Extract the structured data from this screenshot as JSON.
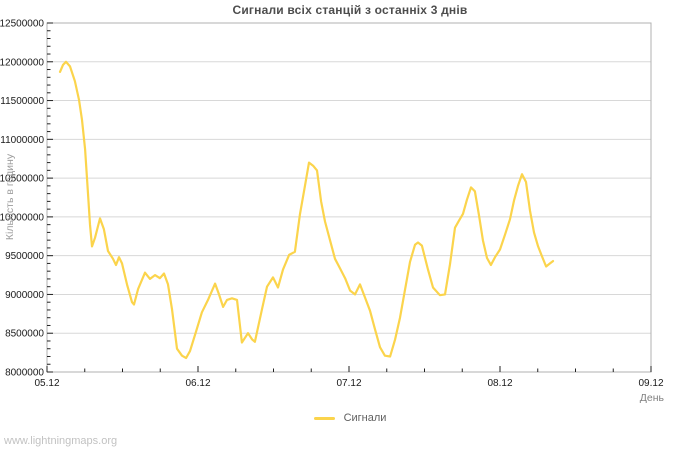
{
  "window": {
    "watermark": "www.lightningmaps.org"
  },
  "colors": {
    "background": "#ffffff",
    "line": "#fbd44c",
    "grid": "#d8d8d8",
    "plot_border": "#b0b0b0",
    "tick": "#222222",
    "tick_label": "#1a1a1a",
    "title": "#4d4d4d",
    "axis_title": "#808080",
    "y_axis_title": "#9c9c9c",
    "legend_text": "#606060",
    "watermark": "#c2c2c2"
  },
  "chart_data": {
    "type": "line",
    "title": "Сигнали всіх станцій з останніх 3 днів",
    "xlabel": "День",
    "ylabel": "Кількість в годину",
    "grid": "horizontal-only",
    "legend_position": "bottom-center",
    "x_tick_labels": [
      "05.12",
      "06.12",
      "07.12",
      "08.12",
      "09.12"
    ],
    "x_tick_days": [
      0,
      1,
      2,
      3,
      4
    ],
    "x_range_days": [
      0,
      4
    ],
    "x_minor_step_days": 0.25,
    "ylim": [
      8000000,
      12500000
    ],
    "y_ticks": [
      8000000,
      8500000,
      9000000,
      9500000,
      10000000,
      10500000,
      11000000,
      11500000,
      12000000,
      12500000
    ],
    "y_minor_step": 100000,
    "series": [
      {
        "name": "Сигнали",
        "color": "#fbd44c",
        "points": [
          [
            0.086,
            11870000
          ],
          [
            0.106,
            11960000
          ],
          [
            0.126,
            12000000
          ],
          [
            0.152,
            11940000
          ],
          [
            0.185,
            11750000
          ],
          [
            0.212,
            11510000
          ],
          [
            0.232,
            11250000
          ],
          [
            0.252,
            10870000
          ],
          [
            0.272,
            10280000
          ],
          [
            0.285,
            9900000
          ],
          [
            0.298,
            9620000
          ],
          [
            0.318,
            9730000
          ],
          [
            0.351,
            9980000
          ],
          [
            0.377,
            9840000
          ],
          [
            0.404,
            9560000
          ],
          [
            0.437,
            9460000
          ],
          [
            0.457,
            9380000
          ],
          [
            0.477,
            9480000
          ],
          [
            0.497,
            9400000
          ],
          [
            0.53,
            9130000
          ],
          [
            0.563,
            8900000
          ],
          [
            0.576,
            8870000
          ],
          [
            0.603,
            9070000
          ],
          [
            0.649,
            9280000
          ],
          [
            0.682,
            9200000
          ],
          [
            0.715,
            9250000
          ],
          [
            0.748,
            9210000
          ],
          [
            0.775,
            9270000
          ],
          [
            0.801,
            9130000
          ],
          [
            0.828,
            8810000
          ],
          [
            0.861,
            8300000
          ],
          [
            0.894,
            8210000
          ],
          [
            0.921,
            8180000
          ],
          [
            0.947,
            8270000
          ],
          [
            0.987,
            8520000
          ],
          [
            1.026,
            8770000
          ],
          [
            1.066,
            8930000
          ],
          [
            1.113,
            9140000
          ],
          [
            1.139,
            9000000
          ],
          [
            1.166,
            8840000
          ],
          [
            1.192,
            8930000
          ],
          [
            1.225,
            8950000
          ],
          [
            1.258,
            8930000
          ],
          [
            1.291,
            8380000
          ],
          [
            1.331,
            8500000
          ],
          [
            1.358,
            8420000
          ],
          [
            1.377,
            8390000
          ],
          [
            1.424,
            8810000
          ],
          [
            1.457,
            9100000
          ],
          [
            1.497,
            9220000
          ],
          [
            1.53,
            9090000
          ],
          [
            1.563,
            9320000
          ],
          [
            1.603,
            9510000
          ],
          [
            1.642,
            9550000
          ],
          [
            1.675,
            10030000
          ],
          [
            1.709,
            10410000
          ],
          [
            1.735,
            10700000
          ],
          [
            1.762,
            10660000
          ],
          [
            1.788,
            10600000
          ],
          [
            1.815,
            10200000
          ],
          [
            1.841,
            9940000
          ],
          [
            1.874,
            9700000
          ],
          [
            1.907,
            9460000
          ],
          [
            1.94,
            9340000
          ],
          [
            1.974,
            9210000
          ],
          [
            2.007,
            9050000
          ],
          [
            2.04,
            9000000
          ],
          [
            2.073,
            9130000
          ],
          [
            2.106,
            8960000
          ],
          [
            2.139,
            8790000
          ],
          [
            2.172,
            8550000
          ],
          [
            2.205,
            8320000
          ],
          [
            2.238,
            8210000
          ],
          [
            2.272,
            8200000
          ],
          [
            2.305,
            8420000
          ],
          [
            2.338,
            8700000
          ],
          [
            2.371,
            9060000
          ],
          [
            2.404,
            9420000
          ],
          [
            2.437,
            9640000
          ],
          [
            2.457,
            9670000
          ],
          [
            2.483,
            9630000
          ],
          [
            2.523,
            9320000
          ],
          [
            2.556,
            9090000
          ],
          [
            2.602,
            8990000
          ],
          [
            2.636,
            9000000
          ],
          [
            2.669,
            9390000
          ],
          [
            2.702,
            9860000
          ],
          [
            2.728,
            9950000
          ],
          [
            2.755,
            10040000
          ],
          [
            2.781,
            10220000
          ],
          [
            2.808,
            10380000
          ],
          [
            2.834,
            10330000
          ],
          [
            2.861,
            10020000
          ],
          [
            2.887,
            9700000
          ],
          [
            2.914,
            9470000
          ],
          [
            2.94,
            9380000
          ],
          [
            2.967,
            9480000
          ],
          [
            3.0,
            9580000
          ],
          [
            3.033,
            9770000
          ],
          [
            3.066,
            9970000
          ],
          [
            3.093,
            10210000
          ],
          [
            3.119,
            10400000
          ],
          [
            3.146,
            10550000
          ],
          [
            3.172,
            10450000
          ],
          [
            3.199,
            10080000
          ],
          [
            3.225,
            9800000
          ],
          [
            3.252,
            9620000
          ],
          [
            3.278,
            9490000
          ],
          [
            3.305,
            9360000
          ],
          [
            3.331,
            9400000
          ],
          [
            3.351,
            9430000
          ]
        ]
      }
    ]
  }
}
